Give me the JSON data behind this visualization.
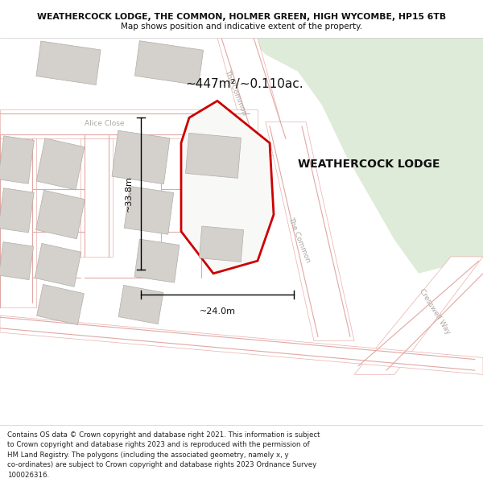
{
  "title_line1": "WEATHERCOCK LODGE, THE COMMON, HOLMER GREEN, HIGH WYCOMBE, HP15 6TB",
  "title_line2": "Map shows position and indicative extent of the property.",
  "property_label": "WEATHERCOCK LODGE",
  "area_label": "~447m²/~0.110ac.",
  "width_label": "~24.0m",
  "height_label": "~33.8m",
  "footer_text": "Contains OS data © Crown copyright and database right 2021. This information is subject\nto Crown copyright and database rights 2023 and is reproduced with the permission of\nHM Land Registry. The polygons (including the associated geometry, namely x, y\nco-ordinates) are subject to Crown copyright and database rights 2023 Ordnance Survey\n100026316.",
  "map_bg": "#ede9e4",
  "green_color": "#deebd8",
  "road_white": "#ffffff",
  "road_pink": "#e8b0ac",
  "building_fill": "#d4d0cc",
  "building_edge": "#b0aca8",
  "plot_red": "#cc0000",
  "footer_bg": "#ffffff",
  "text_dark": "#111111",
  "text_road": "#aaa8a4"
}
